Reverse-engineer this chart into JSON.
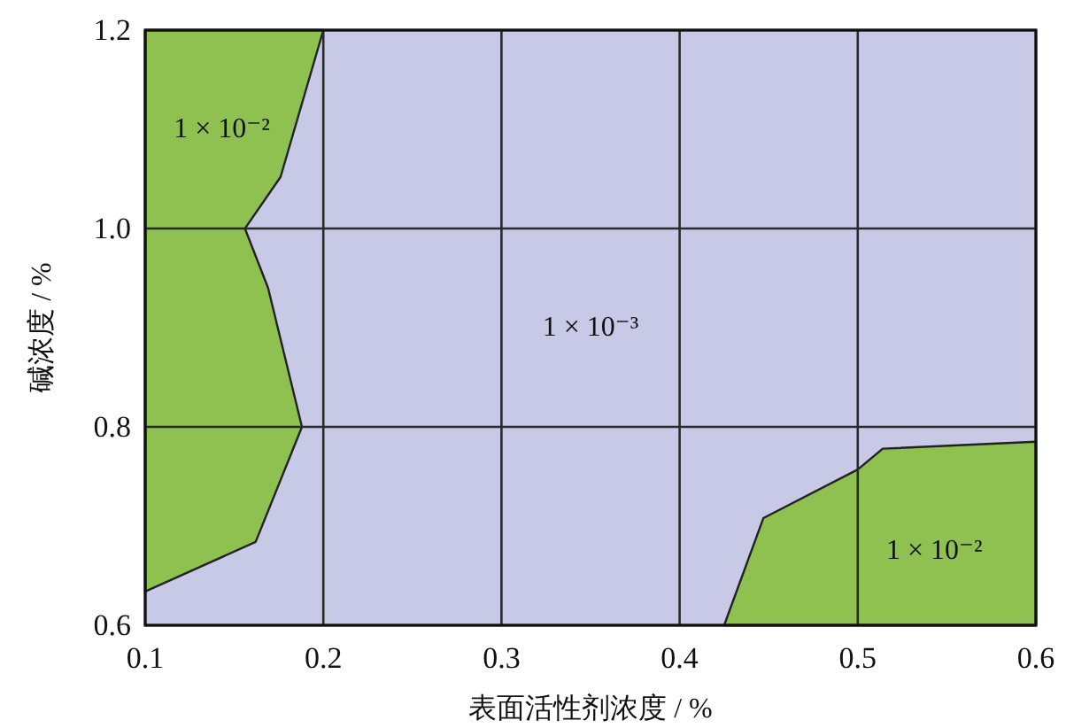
{
  "chart_data": {
    "type": "area",
    "xlabel": "表面活性剂浓度 / %",
    "ylabel": "碱浓度 / %",
    "xlim": [
      0.1,
      0.6
    ],
    "ylim": [
      0.6,
      1.2
    ],
    "xticks": [
      0.1,
      0.2,
      0.3,
      0.4,
      0.5,
      0.6
    ],
    "yticks": [
      0.6,
      0.8,
      {
        "value": 1.0,
        "label": "1.0"
      },
      1.2
    ],
    "grid": true,
    "bands": [
      {
        "axis": "x",
        "from": 0.1,
        "to": 0.6,
        "color": "#c8c9e7"
      }
    ],
    "series": [
      {
        "color": "#8fc151",
        "x": [
          0.1,
          0.162,
          0.188,
          0.169,
          0.156,
          0.176,
          0.2,
          0.1
        ],
        "values": [
          0.634,
          0.684,
          0.8,
          0.94,
          1.0,
          1.052,
          1.2,
          1.2
        ]
      },
      {
        "color": "#8fc151",
        "x": [
          0.425,
          0.447,
          0.5,
          0.514,
          0.6,
          0.6
        ],
        "values": [
          0.6,
          0.708,
          0.757,
          0.778,
          0.785,
          0.6
        ]
      }
    ],
    "annotations": [
      "1 × 10⁻²",
      "1 × 10⁻³",
      "1 × 10⁻²"
    ]
  }
}
